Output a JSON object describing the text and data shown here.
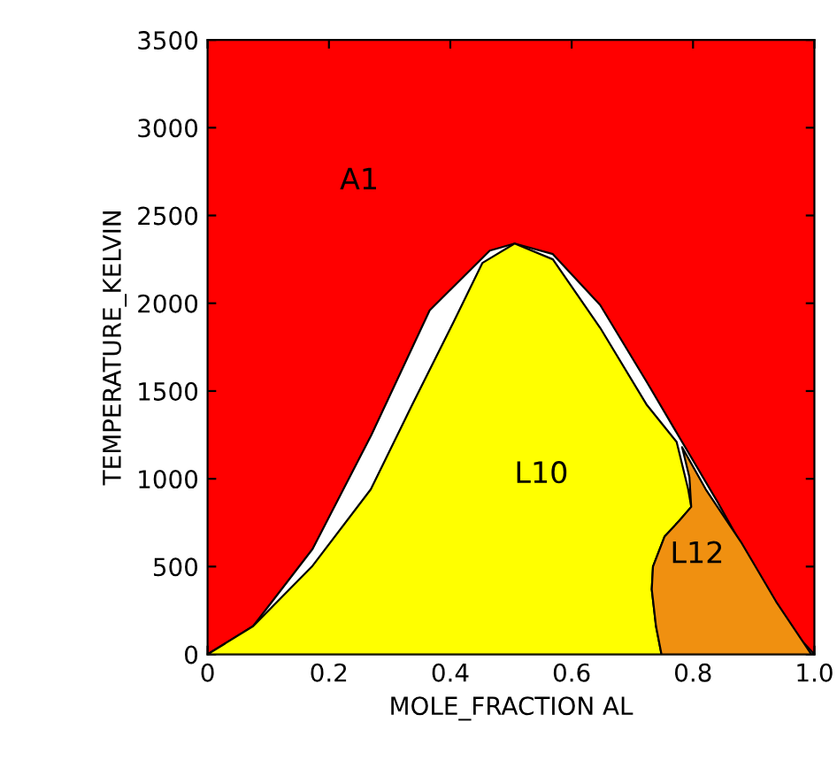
{
  "chart_data": {
    "type": "area",
    "xlabel": "MOLE_FRACTION AL",
    "ylabel": "TEMPERATURE_KELVIN",
    "xlim": [
      0,
      1
    ],
    "ylim": [
      0,
      3500
    ],
    "xticks": [
      0,
      0.2,
      0.4,
      0.6,
      0.8,
      {
        "value": 1,
        "label": "1.0"
      }
    ],
    "yticks": [
      0,
      500,
      1000,
      1500,
      2000,
      2500,
      3000,
      3500
    ],
    "grid": false,
    "legend": false,
    "bands": [
      {
        "axis": "x",
        "from": 0,
        "to": 1,
        "label": "A1",
        "color": "#ff0000"
      }
    ],
    "series": [
      {
        "color": "#ffffff",
        "x": [
          0,
          0.075,
          0.173,
          0.27,
          0.366,
          0.465,
          0.506,
          0.569,
          0.647,
          0.724,
          0.782,
          0.84,
          0.9,
          0.957,
          1
        ],
        "values": [
          0,
          160,
          600,
          1250,
          1960,
          2300,
          2340,
          2280,
          1990,
          1550,
          1210,
          870,
          500,
          160,
          0
        ]
      },
      {
        "name": "L10",
        "color": "#ffff00",
        "x": [
          0,
          0.075,
          0.172,
          0.269,
          0.337,
          0.405,
          0.453,
          0.506,
          0.569,
          0.647,
          0.724,
          0.773,
          0.792,
          0.797,
          0.777,
          0.753,
          0.734,
          0.732,
          0.739,
          0.748
        ],
        "values": [
          0,
          160,
          500,
          940,
          1420,
          1890,
          2230,
          2340,
          2250,
          1860,
          1420,
          1210,
          940,
          840,
          760,
          670,
          500,
          370,
          160,
          0
        ]
      },
      {
        "name": "L12",
        "color": "#f09010",
        "x": [
          0.748,
          0.739,
          0.732,
          0.734,
          0.753,
          0.777,
          0.797,
          0.794,
          0.782,
          0.821,
          0.879,
          0.937,
          0.995
        ],
        "values": [
          0,
          160,
          370,
          500,
          670,
          760,
          840,
          1010,
          1180,
          940,
          640,
          300,
          0
        ]
      }
    ]
  }
}
